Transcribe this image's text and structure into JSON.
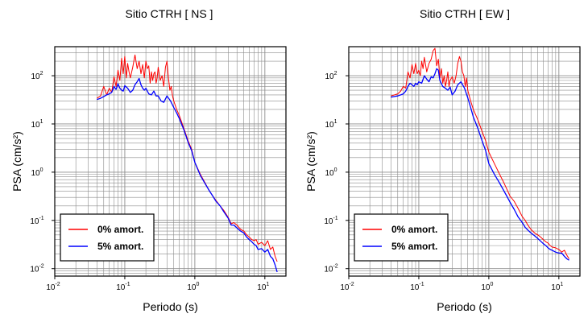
{
  "chart_data": [
    {
      "type": "line",
      "title": "Sitio CTRH [ NS ]",
      "xlabel": "Periodo (s)",
      "ylabel": "PSA (cm/s²)",
      "x_scale": "log",
      "y_scale": "log",
      "xlim": [
        0.01,
        20
      ],
      "ylim": [
        0.007,
        400
      ],
      "x_ticks": [
        {
          "base": "10",
          "exp": "-2"
        },
        {
          "base": "10",
          "exp": "-1"
        },
        {
          "base": "10",
          "exp": "0"
        },
        {
          "base": "10",
          "exp": "1"
        }
      ],
      "y_ticks": [
        {
          "base": "10",
          "exp": "-2"
        },
        {
          "base": "10",
          "exp": "-1"
        },
        {
          "base": "10",
          "exp": "0"
        },
        {
          "base": "10",
          "exp": "1"
        },
        {
          "base": "10",
          "exp": "2"
        }
      ],
      "grid": true,
      "legend_position": "bottom-left",
      "series": [
        {
          "name": "0% amort.",
          "color": "#ff0000",
          "x": [
            0.04,
            0.045,
            0.05,
            0.055,
            0.06,
            0.065,
            0.07,
            0.075,
            0.08,
            0.085,
            0.09,
            0.095,
            0.1,
            0.105,
            0.11,
            0.115,
            0.12,
            0.13,
            0.14,
            0.15,
            0.16,
            0.17,
            0.18,
            0.19,
            0.2,
            0.21,
            0.22,
            0.23,
            0.24,
            0.25,
            0.26,
            0.27,
            0.28,
            0.29,
            0.3,
            0.32,
            0.34,
            0.36,
            0.38,
            0.4,
            0.42,
            0.44,
            0.46,
            0.48,
            0.5,
            0.55,
            0.6,
            0.7,
            0.8,
            0.9,
            1.0,
            1.2,
            1.4,
            1.6,
            1.8,
            2.0,
            2.3,
            2.6,
            3.0,
            3.3,
            3.6,
            4.0,
            4.5,
            5.0,
            5.5,
            6.0,
            6.5,
            7.0,
            7.5,
            8.0,
            9.0,
            10.0,
            11.0,
            12.0,
            13.0,
            14.0,
            15.0
          ],
          "y": [
            34,
            38,
            60,
            40,
            55,
            45,
            95,
            60,
            130,
            80,
            230,
            110,
            250,
            90,
            180,
            120,
            90,
            150,
            270,
            140,
            200,
            110,
            170,
            90,
            200,
            140,
            160,
            70,
            120,
            80,
            110,
            120,
            70,
            90,
            150,
            80,
            100,
            60,
            150,
            200,
            90,
            50,
            60,
            38,
            30,
            20,
            15,
            8,
            4.5,
            3,
            1.6,
            0.9,
            0.6,
            0.42,
            0.32,
            0.26,
            0.2,
            0.16,
            0.115,
            0.085,
            0.09,
            0.08,
            0.065,
            0.06,
            0.05,
            0.045,
            0.04,
            0.038,
            0.04,
            0.032,
            0.035,
            0.03,
            0.038,
            0.025,
            0.028,
            0.018,
            0.014
          ]
        },
        {
          "name": "5% amort.",
          "color": "#0000ff",
          "x": [
            0.04,
            0.045,
            0.05,
            0.055,
            0.06,
            0.065,
            0.07,
            0.075,
            0.08,
            0.085,
            0.09,
            0.095,
            0.1,
            0.11,
            0.12,
            0.13,
            0.14,
            0.15,
            0.16,
            0.17,
            0.18,
            0.19,
            0.2,
            0.22,
            0.24,
            0.26,
            0.28,
            0.3,
            0.33,
            0.36,
            0.4,
            0.45,
            0.5,
            0.55,
            0.6,
            0.7,
            0.8,
            0.9,
            1.0,
            1.2,
            1.4,
            1.6,
            1.8,
            2.0,
            2.3,
            2.6,
            3.0,
            3.3,
            3.6,
            4.0,
            4.5,
            5.0,
            5.5,
            6.0,
            6.5,
            7.0,
            7.5,
            8.0,
            9.0,
            10.0,
            11.0,
            12.0,
            13.0,
            14.0,
            15.0
          ],
          "y": [
            32,
            34,
            37,
            40,
            42,
            45,
            60,
            52,
            68,
            55,
            50,
            48,
            62,
            55,
            45,
            50,
            65,
            75,
            88,
            65,
            55,
            50,
            55,
            42,
            40,
            48,
            38,
            38,
            30,
            28,
            38,
            30,
            22,
            17,
            13,
            7.5,
            4.2,
            2.8,
            1.6,
            0.85,
            0.58,
            0.42,
            0.32,
            0.25,
            0.2,
            0.15,
            0.11,
            0.08,
            0.08,
            0.07,
            0.06,
            0.055,
            0.045,
            0.04,
            0.036,
            0.032,
            0.03,
            0.025,
            0.026,
            0.022,
            0.025,
            0.018,
            0.016,
            0.012,
            0.0085
          ]
        }
      ]
    },
    {
      "type": "line",
      "title": "Sitio CTRH [ EW ]",
      "xlabel": "Periodo (s)",
      "ylabel": "PSA (cm/s²)",
      "x_scale": "log",
      "y_scale": "log",
      "xlim": [
        0.01,
        20
      ],
      "ylim": [
        0.007,
        400
      ],
      "x_ticks": [
        {
          "base": "10",
          "exp": "-2"
        },
        {
          "base": "10",
          "exp": "-1"
        },
        {
          "base": "10",
          "exp": "0"
        },
        {
          "base": "10",
          "exp": "1"
        }
      ],
      "y_ticks": [
        {
          "base": "10",
          "exp": "-2"
        },
        {
          "base": "10",
          "exp": "-1"
        },
        {
          "base": "10",
          "exp": "0"
        },
        {
          "base": "10",
          "exp": "1"
        },
        {
          "base": "10",
          "exp": "2"
        }
      ],
      "grid": true,
      "legend_position": "bottom-left",
      "series": [
        {
          "name": "0% amort.",
          "color": "#ff0000",
          "x": [
            0.04,
            0.045,
            0.05,
            0.055,
            0.06,
            0.065,
            0.07,
            0.075,
            0.08,
            0.085,
            0.09,
            0.095,
            0.1,
            0.105,
            0.11,
            0.115,
            0.12,
            0.13,
            0.14,
            0.15,
            0.16,
            0.17,
            0.18,
            0.19,
            0.2,
            0.21,
            0.22,
            0.23,
            0.24,
            0.25,
            0.26,
            0.27,
            0.28,
            0.3,
            0.32,
            0.34,
            0.36,
            0.38,
            0.4,
            0.42,
            0.44,
            0.46,
            0.48,
            0.5,
            0.55,
            0.6,
            0.7,
            0.8,
            0.9,
            1.0,
            1.2,
            1.4,
            1.6,
            1.8,
            2.0,
            2.3,
            2.6,
            3.0,
            3.3,
            3.6,
            4.0,
            4.5,
            5.0,
            5.5,
            6.0,
            6.5,
            7.0,
            7.5,
            8.0,
            9.0,
            10.0,
            11.0,
            12.0,
            13.0,
            14.0
          ],
          "y": [
            38,
            40,
            42,
            48,
            60,
            55,
            120,
            90,
            170,
            110,
            180,
            110,
            130,
            100,
            200,
            140,
            240,
            120,
            180,
            220,
            330,
            370,
            160,
            220,
            90,
            140,
            70,
            100,
            60,
            80,
            120,
            60,
            80,
            95,
            70,
            100,
            180,
            250,
            200,
            120,
            100,
            60,
            90,
            50,
            30,
            20,
            12,
            7,
            4.5,
            2.6,
            1.5,
            0.95,
            0.65,
            0.45,
            0.32,
            0.25,
            0.18,
            0.12,
            0.1,
            0.08,
            0.065,
            0.055,
            0.05,
            0.045,
            0.04,
            0.036,
            0.034,
            0.03,
            0.028,
            0.027,
            0.025,
            0.022,
            0.024,
            0.019,
            0.016
          ]
        },
        {
          "name": "5% amort.",
          "color": "#0000ff",
          "x": [
            0.04,
            0.045,
            0.05,
            0.055,
            0.06,
            0.065,
            0.07,
            0.075,
            0.08,
            0.085,
            0.09,
            0.095,
            0.1,
            0.11,
            0.12,
            0.13,
            0.14,
            0.15,
            0.16,
            0.17,
            0.18,
            0.19,
            0.2,
            0.22,
            0.24,
            0.26,
            0.28,
            0.3,
            0.33,
            0.36,
            0.4,
            0.45,
            0.5,
            0.55,
            0.6,
            0.7,
            0.8,
            0.9,
            1.0,
            1.2,
            1.4,
            1.6,
            1.8,
            2.0,
            2.3,
            2.6,
            3.0,
            3.3,
            3.6,
            4.0,
            4.5,
            5.0,
            5.5,
            6.0,
            6.5,
            7.0,
            7.5,
            8.0,
            9.0,
            10.0,
            11.0,
            12.0,
            13.0,
            14.0
          ],
          "y": [
            36,
            37,
            38,
            40,
            42,
            48,
            60,
            70,
            65,
            60,
            70,
            65,
            75,
            70,
            100,
            85,
            75,
            95,
            90,
            110,
            140,
            130,
            80,
            60,
            55,
            50,
            58,
            40,
            48,
            65,
            75,
            55,
            35,
            22,
            14,
            8,
            4.5,
            2.8,
            1.5,
            0.9,
            0.62,
            0.44,
            0.32,
            0.24,
            0.17,
            0.12,
            0.09,
            0.072,
            0.063,
            0.055,
            0.048,
            0.042,
            0.037,
            0.033,
            0.03,
            0.027,
            0.025,
            0.024,
            0.022,
            0.021,
            0.021,
            0.018,
            0.016,
            0.015
          ]
        }
      ]
    }
  ]
}
